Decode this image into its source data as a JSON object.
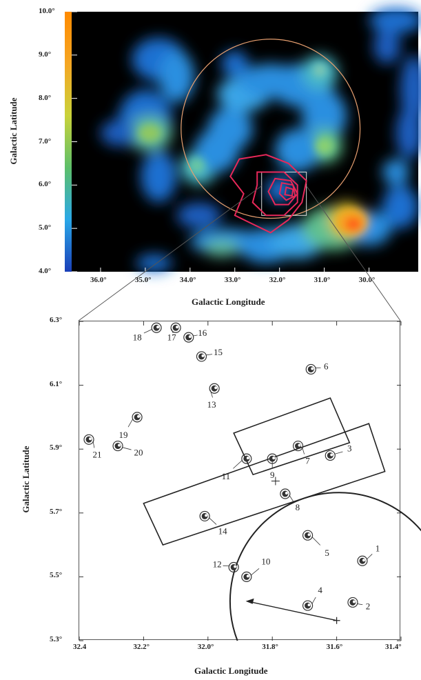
{
  "chart_data": [
    {
      "type": "heatmap",
      "xlabel": "Galactic Longitude",
      "ylabel": "Galactic Latitude",
      "x_ticks": [
        "36.0°",
        "35.0°",
        "34.0°",
        "33.0°",
        "32.0°",
        "31.0°",
        "30.0°"
      ],
      "x_tick_values": [
        36.0,
        35.0,
        34.0,
        33.0,
        32.0,
        31.0,
        30.0
      ],
      "xlim": [
        36.8,
        28.9
      ],
      "y_ticks": [
        "10.0°",
        "9.0°",
        "8.0°",
        "7.0°",
        "6.0°",
        "5.0°",
        "4.0°"
      ],
      "y_tick_values": [
        10.0,
        9.0,
        8.0,
        7.0,
        6.0,
        5.0,
        4.0
      ],
      "ylim": [
        4.0,
        10.0
      ],
      "colorbar": [
        "#1a3fb8",
        "#2aa8e8",
        "#5dbf6a",
        "#c9d23a",
        "#f5a623",
        "#ff8a00"
      ],
      "ring": {
        "l": 32.2,
        "b": 7.3,
        "radius_deg": 2.0,
        "color": "#e8a070"
      },
      "zoom_box": {
        "l1": 32.4,
        "l2": 31.4,
        "b1": 5.3,
        "b2": 6.3,
        "color": "#dddddd"
      },
      "contour_color": "#e8285a"
    },
    {
      "type": "scatter",
      "xlabel": "Galactic Longitude",
      "ylabel": "Galactic Latitude",
      "x_ticks": [
        "32.4",
        "32.2°",
        "32.0°",
        "31.8°",
        "31.6°",
        "31.4°"
      ],
      "x_tick_values": [
        32.4,
        32.2,
        32.0,
        31.8,
        31.6,
        31.4
      ],
      "xlim": [
        32.4,
        31.4
      ],
      "y_ticks": [
        "6.3°",
        "6.1°",
        "5.9°",
        "5.7°",
        "5.5°",
        "5.3°"
      ],
      "y_tick_values": [
        6.3,
        6.1,
        5.9,
        5.7,
        5.5,
        5.3
      ],
      "ylim": [
        5.3,
        6.3
      ],
      "sources": [
        {
          "id": "1",
          "l": 31.52,
          "b": 5.55
        },
        {
          "id": "2",
          "l": 31.55,
          "b": 5.42
        },
        {
          "id": "3",
          "l": 31.62,
          "b": 5.88
        },
        {
          "id": "4",
          "l": 31.69,
          "b": 5.41
        },
        {
          "id": "5",
          "l": 31.69,
          "b": 5.63
        },
        {
          "id": "6",
          "l": 31.68,
          "b": 6.15
        },
        {
          "id": "7",
          "l": 31.72,
          "b": 5.91
        },
        {
          "id": "8",
          "l": 31.76,
          "b": 5.76
        },
        {
          "id": "9",
          "l": 31.8,
          "b": 5.87
        },
        {
          "id": "10",
          "l": 31.88,
          "b": 5.5
        },
        {
          "id": "11",
          "l": 31.88,
          "b": 5.87
        },
        {
          "id": "12",
          "l": 31.92,
          "b": 5.53
        },
        {
          "id": "13",
          "l": 31.98,
          "b": 6.09
        },
        {
          "id": "14",
          "l": 32.01,
          "b": 5.69
        },
        {
          "id": "15",
          "l": 32.02,
          "b": 6.19
        },
        {
          "id": "16",
          "l": 32.06,
          "b": 6.25
        },
        {
          "id": "17",
          "l": 32.1,
          "b": 6.28
        },
        {
          "id": "18",
          "l": 32.16,
          "b": 6.28
        },
        {
          "id": "19",
          "l": 32.22,
          "b": 6.0
        },
        {
          "id": "20",
          "l": 32.28,
          "b": 5.91
        },
        {
          "id": "21",
          "l": 32.37,
          "b": 5.93
        }
      ],
      "cross": {
        "l": 31.79,
        "b": 5.8
      },
      "circle_center": {
        "l": 31.6,
        "b": 5.32
      }
    }
  ]
}
